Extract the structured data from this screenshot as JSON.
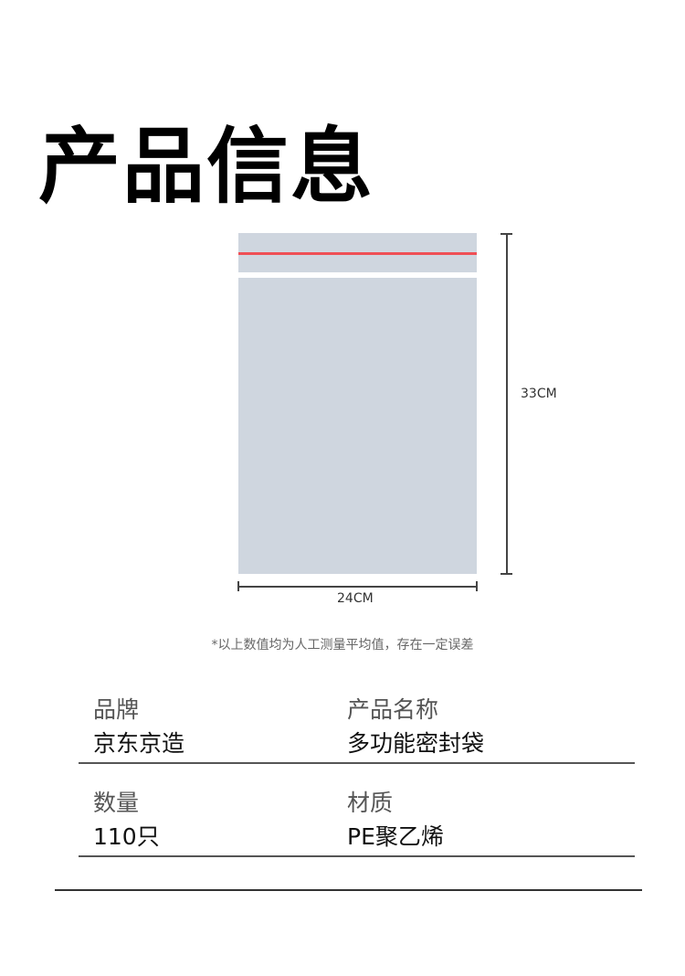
{
  "title": "产品信息",
  "diagram": {
    "height_label": "33CM",
    "width_label": "24CM",
    "zip_color": "#ef4f55",
    "bag_color": "#cfd6df"
  },
  "note": "*以上数值均为人工测量平均值，存在一定误差",
  "specs": [
    {
      "label": "品牌",
      "value": "京东京造"
    },
    {
      "label": "产品名称",
      "value": "多功能密封袋"
    },
    {
      "label": "数量",
      "value": "110只"
    },
    {
      "label": "材质",
      "value": "PE聚乙烯"
    }
  ]
}
